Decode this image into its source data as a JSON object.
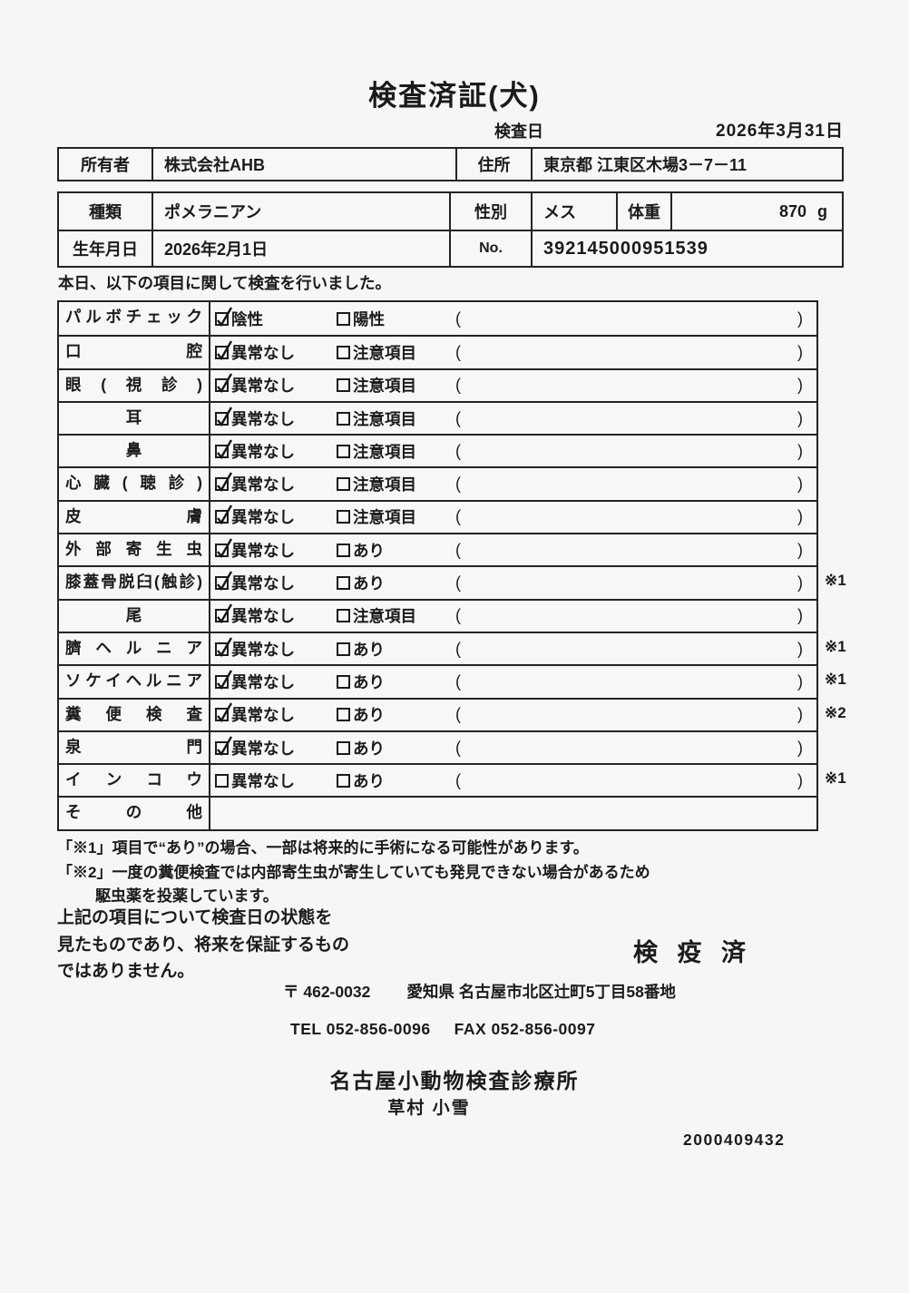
{
  "colors": {
    "paper": "#f6f6f4",
    "ink": "#1b1b1b"
  },
  "title": "検査済証(犬)",
  "exam_date": {
    "label": "検査日",
    "value": "2026年3月31日"
  },
  "owner_table": {
    "owner_label": "所有者",
    "owner_value": "株式会社AHB",
    "address_label": "住所",
    "address_value": "東京都 江東区木場3－7－11"
  },
  "dog_table": {
    "breed_label": "種類",
    "breed_value": "ポメラニアン",
    "sex_label": "性別",
    "sex_value": "メス",
    "weight_label": "体重",
    "weight_value": "870",
    "weight_unit": "g",
    "birth_label": "生年月日",
    "birth_value": "2026年2月1日",
    "no_label": "No.",
    "no_value": "392145000951539"
  },
  "intro": "本日、以下の項目に関して検査を行いました。",
  "checklist": {
    "rows": [
      {
        "label": "パルボチェック",
        "align": "justify",
        "opt1": "陰性",
        "opt1_checked": true,
        "opt2": "陽性",
        "opt2_checked": false,
        "note": ""
      },
      {
        "label": "口腔",
        "align": "justify",
        "opt1": "異常なし",
        "opt1_checked": true,
        "opt2": "注意項目",
        "opt2_checked": false,
        "note": ""
      },
      {
        "label": "眼(視診)",
        "align": "justify",
        "opt1": "異常なし",
        "opt1_checked": true,
        "opt2": "注意項目",
        "opt2_checked": false,
        "note": ""
      },
      {
        "label": "耳",
        "align": "center",
        "opt1": "異常なし",
        "opt1_checked": true,
        "opt2": "注意項目",
        "opt2_checked": false,
        "note": ""
      },
      {
        "label": "鼻",
        "align": "center",
        "opt1": "異常なし",
        "opt1_checked": true,
        "opt2": "注意項目",
        "opt2_checked": false,
        "note": ""
      },
      {
        "label": "心臓(聴診)",
        "align": "justify",
        "opt1": "異常なし",
        "opt1_checked": true,
        "opt2": "注意項目",
        "opt2_checked": false,
        "note": ""
      },
      {
        "label": "皮膚",
        "align": "justify",
        "opt1": "異常なし",
        "opt1_checked": true,
        "opt2": "注意項目",
        "opt2_checked": false,
        "note": ""
      },
      {
        "label": "外部寄生虫",
        "align": "justify",
        "opt1": "異常なし",
        "opt1_checked": true,
        "opt2": "あり",
        "opt2_checked": false,
        "note": ""
      },
      {
        "label": "膝蓋骨脱臼(触診)",
        "align": "justify",
        "opt1": "異常なし",
        "opt1_checked": true,
        "opt2": "あり",
        "opt2_checked": false,
        "note": "※1"
      },
      {
        "label": "尾",
        "align": "center",
        "opt1": "異常なし",
        "opt1_checked": true,
        "opt2": "注意項目",
        "opt2_checked": false,
        "note": ""
      },
      {
        "label": "臍ヘルニア",
        "align": "justify",
        "opt1": "異常なし",
        "opt1_checked": true,
        "opt2": "あり",
        "opt2_checked": false,
        "note": "※1"
      },
      {
        "label": "ソケイヘルニア",
        "align": "justify",
        "opt1": "異常なし",
        "opt1_checked": true,
        "opt2": "あり",
        "opt2_checked": false,
        "note": "※1"
      },
      {
        "label": "糞便検査",
        "align": "justify",
        "opt1": "異常なし",
        "opt1_checked": true,
        "opt2": "あり",
        "opt2_checked": false,
        "note": "※2"
      },
      {
        "label": "泉門",
        "align": "justify",
        "opt1": "異常なし",
        "opt1_checked": true,
        "opt2": "あり",
        "opt2_checked": false,
        "note": ""
      },
      {
        "label": "インコウ",
        "align": "justify",
        "opt1": "異常なし",
        "opt1_checked": false,
        "opt2": "あり",
        "opt2_checked": false,
        "note": "※1"
      },
      {
        "label": "その他",
        "align": "justify",
        "empty": true,
        "note": ""
      }
    ]
  },
  "footnotes": {
    "line1": "「※1」項目で“あり”の場合、一部は将来的に手術になる可能性があります。",
    "line2": "「※2」一度の糞便検査では内部寄生虫が寄生していても発見できない場合があるため",
    "line3": "駆虫薬を投薬しています。"
  },
  "disclaimer": {
    "line1": "上記の項目について検査日の状態を",
    "line2": "見たものであり、将来を保証するもの",
    "line3": "ではありません。"
  },
  "stamp": "検 疫 済",
  "clinic": {
    "postal": "〒 462-0032",
    "address": "愛知県 名古屋市北区辻町5丁目58番地",
    "tel": "TEL 052-856-0096",
    "fax": "FAX 052-856-0097",
    "name": "名古屋小動物検査診療所",
    "vet_name": "草村 小雪"
  },
  "serial": "2000409432"
}
